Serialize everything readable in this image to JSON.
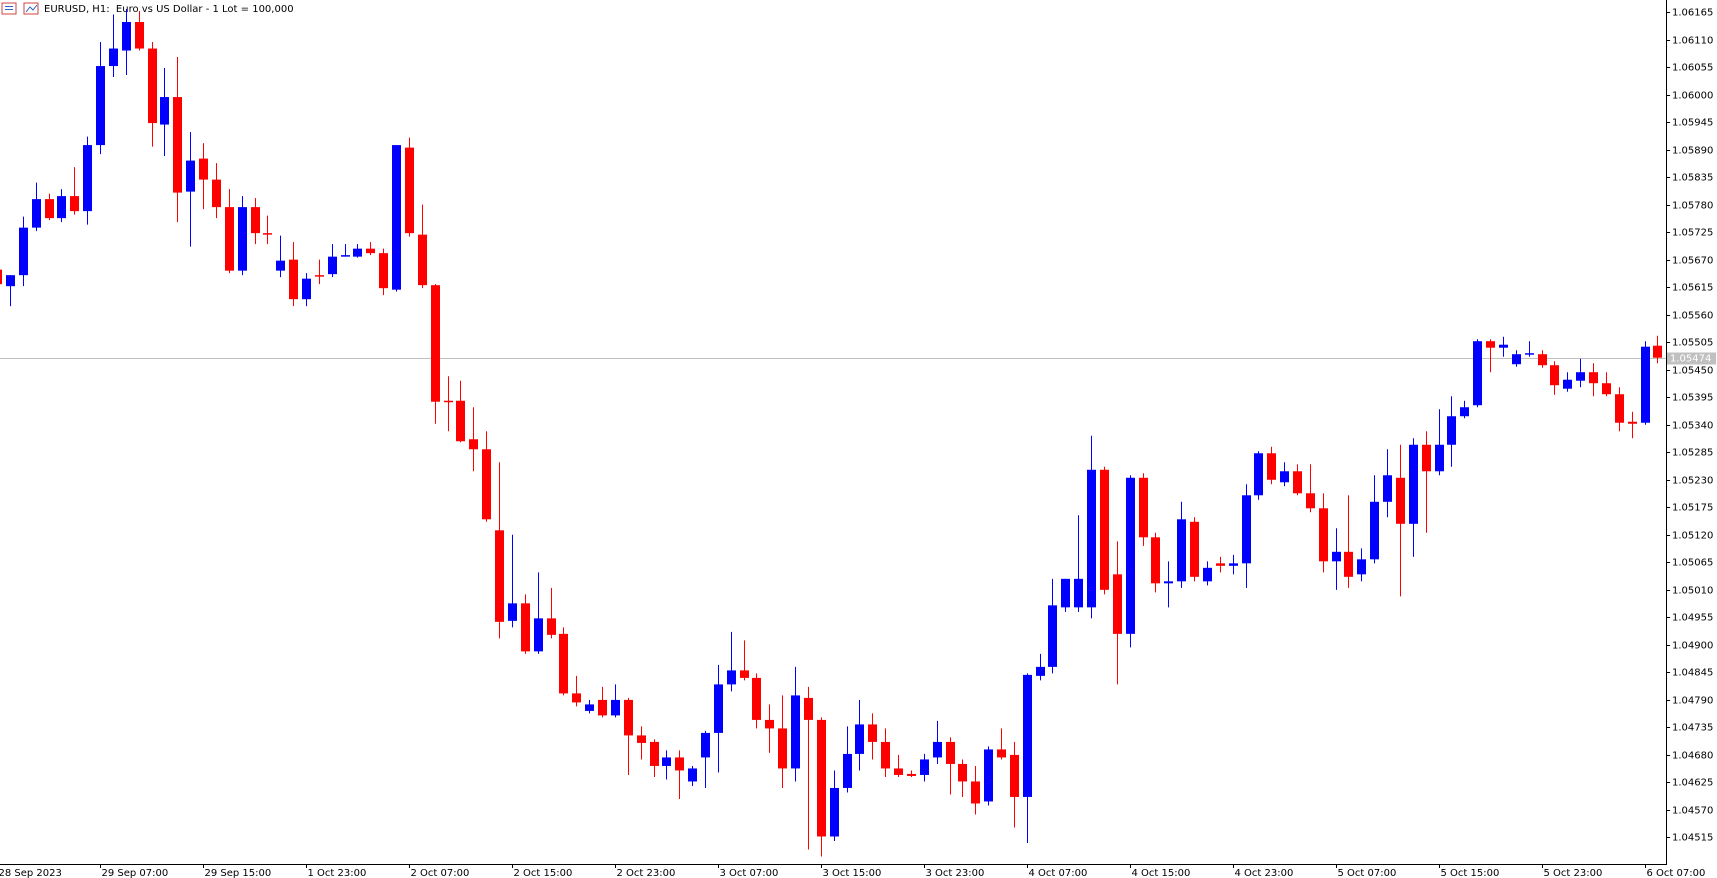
{
  "chart_data": {
    "type": "candlestick",
    "title": "EURUSD, H1:  Euro vs US Dollar - 1 Lot = 100,000",
    "categories": [
      "28 Sep 2023",
      null,
      null,
      null,
      null,
      null,
      null,
      null,
      "29 Sep 07:00",
      null,
      null,
      null,
      null,
      null,
      null,
      null,
      "29 Sep 15:00",
      null,
      null,
      null,
      null,
      null,
      null,
      null,
      "1 Oct 23:00",
      null,
      null,
      null,
      null,
      null,
      null,
      null,
      "2 Oct 07:00",
      null,
      null,
      null,
      null,
      null,
      null,
      null,
      "2 Oct 15:00",
      null,
      null,
      null,
      null,
      null,
      null,
      null,
      "2 Oct 23:00",
      null,
      null,
      null,
      null,
      null,
      null,
      null,
      "3 Oct 07:00",
      null,
      null,
      null,
      null,
      null,
      null,
      null,
      "3 Oct 15:00",
      null,
      null,
      null,
      null,
      null,
      null,
      null,
      "3 Oct 23:00",
      null,
      null,
      null,
      null,
      null,
      null,
      null,
      "4 Oct 07:00",
      null,
      null,
      null,
      null,
      null,
      null,
      null,
      "4 Oct 15:00",
      null,
      null,
      null,
      null,
      null,
      null,
      null,
      "4 Oct 23:00",
      null,
      null,
      null,
      null,
      null,
      null,
      null,
      "5 Oct 07:00",
      null,
      null,
      null,
      null,
      null,
      null,
      null,
      "5 Oct 15:00",
      null,
      null,
      null,
      null,
      null,
      null,
      null,
      "5 Oct 23:00",
      null,
      null,
      null,
      null,
      null,
      null,
      null,
      "6 Oct 07:00",
      null
    ],
    "open": [
      1.0565,
      1.05617,
      1.05639,
      1.05734,
      1.05791,
      1.05753,
      1.05797,
      1.05767,
      1.05899,
      1.06057,
      1.06088,
      1.06145,
      1.06092,
      1.0594,
      1.05995,
      1.05806,
      1.05872,
      1.0583,
      1.05775,
      1.05648,
      1.05775,
      1.05723,
      1.05648,
      1.0567,
      1.05591,
      1.05639,
      1.05641,
      1.05676,
      1.05676,
      1.05692,
      1.05683,
      1.0561,
      1.05894,
      1.0572,
      1.05619,
      1.05388,
      1.05388,
      1.05311,
      1.05291,
      1.05129,
      1.04948,
      1.04983,
      1.04887,
      1.04953,
      1.04922,
      1.04803,
      1.04768,
      1.0479,
      1.04759,
      1.0479,
      1.04719,
      1.04706,
      1.04658,
      1.04675,
      1.04627,
      1.04675,
      1.04724,
      1.04821,
      1.04849,
      1.04834,
      1.0475,
      1.04733,
      1.04653,
      1.04794,
      1.0475,
      1.04517,
      1.04614,
      1.04682,
      1.04741,
      1.04706,
      1.04653,
      1.04642,
      1.0464,
      1.04675,
      1.04706,
      1.04662,
      1.04627,
      1.04587,
      1.04691,
      1.0468,
      1.04596,
      1.04838,
      1.04856,
      1.04975,
      1.04975,
      1.04975,
      1.0525,
      1.05041,
      1.04922,
      1.05234,
      1.05115,
      1.05023,
      1.05027,
      1.05146,
      1.05027,
      1.05063,
      1.05058,
      1.05063,
      1.05199,
      1.05283,
      1.05225,
      1.05247,
      1.05203,
      1.05173,
      1.05067,
      1.05086,
      1.05041,
      1.05071,
      1.05186,
      1.05234,
      1.05142,
      1.053,
      1.05247,
      1.053,
      1.05357,
      1.05379,
      1.05507,
      1.05494,
      1.05461,
      1.05481,
      1.05481,
      1.05459,
      1.05412,
      1.05428,
      1.05445,
      1.05423,
      1.05401,
      1.05346,
      1.05344,
      1.05498
    ],
    "high": [
      1.05661,
      1.05639,
      1.05756,
      1.05824,
      1.05802,
      1.05811,
      1.05855,
      1.05916,
      1.06105,
      1.0616,
      1.06171,
      1.06167,
      1.06105,
      1.06053,
      1.06075,
      1.05925,
      1.05903,
      1.05863,
      1.05811,
      1.05797,
      1.05793,
      1.05758,
      1.05718,
      1.05705,
      1.05643,
      1.0567,
      1.05701,
      1.05701,
      1.05701,
      1.05705,
      1.05692,
      1.05899,
      1.05914,
      1.0578,
      1.05621,
      1.05437,
      1.05428,
      1.05375,
      1.05327,
      1.05265,
      1.0512,
      1.05001,
      1.05045,
      1.05014,
      1.04935,
      1.04838,
      1.0479,
      1.04816,
      1.04821,
      1.04794,
      1.04737,
      1.04711,
      1.04689,
      1.04689,
      1.04658,
      1.04728,
      1.0486,
      1.04926,
      1.04909,
      1.04843,
      1.04781,
      1.04799,
      1.04856,
      1.04816,
      1.04755,
      1.04649,
      1.04737,
      1.0479,
      1.04763,
      1.04733,
      1.0468,
      1.04649,
      1.04682,
      1.04748,
      1.04715,
      1.04671,
      1.04658,
      1.04697,
      1.04733,
      1.04706,
      1.04843,
      1.04882,
      1.05032,
      1.05032,
      1.05159,
      1.05318,
      1.05256,
      1.05107,
      1.05239,
      1.05243,
      1.05124,
      1.05067,
      1.05186,
      1.05155,
      1.05067,
      1.05076,
      1.0508,
      1.05221,
      1.05287,
      1.05296,
      1.05265,
      1.05261,
      1.05261,
      1.05203,
      1.05133,
      1.05199,
      1.05093,
      1.05239,
      1.05291,
      1.053,
      1.05313,
      1.05327,
      1.05371,
      1.05397,
      1.05388,
      1.05511,
      1.05511,
      1.05516,
      1.05489,
      1.05507,
      1.05489,
      1.05467,
      1.05445,
      1.05472,
      1.05463,
      1.05445,
      1.05415,
      1.05366,
      1.05507,
      1.05518
    ],
    "low": [
      1.05613,
      1.05577,
      1.05617,
      1.05727,
      1.05749,
      1.05745,
      1.0576,
      1.0574,
      1.05881,
      1.06035,
      1.06039,
      1.06088,
      1.05896,
      1.05877,
      1.05745,
      1.05696,
      1.05771,
      1.05753,
      1.05643,
      1.05639,
      1.05701,
      1.05701,
      1.05635,
      1.05577,
      1.05577,
      1.05621,
      1.05635,
      1.05676,
      1.05674,
      1.05679,
      1.05599,
      1.05606,
      1.05716,
      1.05613,
      1.05342,
      1.05327,
      1.05305,
      1.05247,
      1.05146,
      1.04913,
      1.04935,
      1.04882,
      1.04882,
      1.04913,
      1.04799,
      1.04777,
      1.04763,
      1.04755,
      1.04755,
      1.0464,
      1.04671,
      1.04636,
      1.04631,
      1.04592,
      1.04618,
      1.04614,
      1.04645,
      1.04807,
      1.04829,
      1.04733,
      1.04684,
      1.04614,
      1.04627,
      1.04491,
      1.04477,
      1.04508,
      1.04605,
      1.04649,
      1.04671,
      1.04636,
      1.04636,
      1.04636,
      1.04627,
      1.04662,
      1.04601,
      1.04596,
      1.04561,
      1.04579,
      1.04671,
      1.04535,
      1.04504,
      1.04829,
      1.04843,
      1.04966,
      1.04966,
      1.04953,
      1.05001,
      1.04821,
      1.04895,
      1.05098,
      1.05005,
      1.04975,
      1.05014,
      1.05027,
      1.05019,
      1.05045,
      1.05041,
      1.05014,
      1.0519,
      1.05221,
      1.05217,
      1.05199,
      1.05165,
      1.05045,
      1.0501,
      1.05014,
      1.05027,
      1.05063,
      1.05155,
      1.04997,
      1.05076,
      1.05124,
      1.05239,
      1.05256,
      1.05353,
      1.05375,
      1.05445,
      1.05476,
      1.05456,
      1.05476,
      1.05454,
      1.054,
      1.05406,
      1.05415,
      1.05397,
      1.05397,
      1.05327,
      1.05313,
      1.0534,
      1.05463
    ],
    "close": [
      1.05621,
      1.05639,
      1.05734,
      1.05791,
      1.05753,
      1.05797,
      1.05767,
      1.05899,
      1.06057,
      1.06092,
      1.06145,
      1.06092,
      1.05943,
      1.05995,
      1.05804,
      1.05868,
      1.0583,
      1.05775,
      1.05648,
      1.05775,
      1.05723,
      1.0572,
      1.05668,
      1.05591,
      1.05632,
      1.05637,
      1.05676,
      1.05679,
      1.05692,
      1.05683,
      1.05613,
      1.05899,
      1.05723,
      1.05619,
      1.05386,
      1.05386,
      1.05307,
      1.05291,
      1.05151,
      1.04946,
      1.04983,
      1.04887,
      1.04953,
      1.0492,
      1.04803,
      1.04785,
      1.04781,
      1.04759,
      1.0479,
      1.04719,
      1.04704,
      1.04658,
      1.04675,
      1.04649,
      1.04653,
      1.04724,
      1.04821,
      1.04849,
      1.04834,
      1.0475,
      1.04733,
      1.04653,
      1.04799,
      1.0475,
      1.04517,
      1.04614,
      1.04682,
      1.04741,
      1.04706,
      1.04653,
      1.0464,
      1.04638,
      1.04671,
      1.04706,
      1.04662,
      1.04627,
      1.04583,
      1.04691,
      1.04675,
      1.04596,
      1.0484,
      1.04856,
      1.04979,
      1.05032,
      1.05032,
      1.0525,
      1.0501,
      1.04922,
      1.05234,
      1.05115,
      1.05023,
      1.05027,
      1.05151,
      1.05036,
      1.05054,
      1.05058,
      1.05063,
      1.05199,
      1.05283,
      1.0523,
      1.05247,
      1.05203,
      1.05173,
      1.05067,
      1.05086,
      1.05036,
      1.05071,
      1.05186,
      1.05239,
      1.05142,
      1.053,
      1.05247,
      1.053,
      1.05357,
      1.05375,
      1.05507,
      1.05494,
      1.055,
      1.05481,
      1.05483,
      1.05459,
      1.05419,
      1.0543,
      1.05445,
      1.05423,
      1.05401,
      1.05344,
      1.05342,
      1.05496,
      1.05474
    ],
    "up_color": "#0000ff",
    "down_color": "#ff0000",
    "price_line_color": "#c0c0c0",
    "ylim": [
      1.04462,
      1.06189
    ],
    "yticks": [
      1.06165,
      {
        "value": 1.0611,
        "label": "1.06110"
      },
      1.06055,
      {
        "value": 1.06,
        "label": "1.06000"
      },
      1.05945,
      {
        "value": 1.0589,
        "label": "1.05890"
      },
      1.05835,
      {
        "value": 1.0578,
        "label": "1.05780"
      },
      1.05725,
      {
        "value": 1.0567,
        "label": "1.05670"
      },
      1.05615,
      {
        "value": 1.0556,
        "label": "1.05560"
      },
      1.05505,
      {
        "value": 1.0545,
        "label": "1.05450"
      },
      1.05395,
      {
        "value": 1.0534,
        "label": "1.05340"
      },
      1.05285,
      {
        "value": 1.0523,
        "label": "1.05230"
      },
      1.05175,
      {
        "value": 1.0512,
        "label": "1.05120"
      },
      1.05065,
      {
        "value": 1.0501,
        "label": "1.05010"
      },
      1.04955,
      {
        "value": 1.049,
        "label": "1.04900"
      },
      1.04845,
      {
        "value": 1.0479,
        "label": "1.04790"
      },
      1.04735,
      {
        "value": 1.0468,
        "label": "1.04680"
      },
      1.04625,
      {
        "value": 1.0457,
        "label": "1.04570"
      },
      1.04515
    ],
    "grid": false
  }
}
